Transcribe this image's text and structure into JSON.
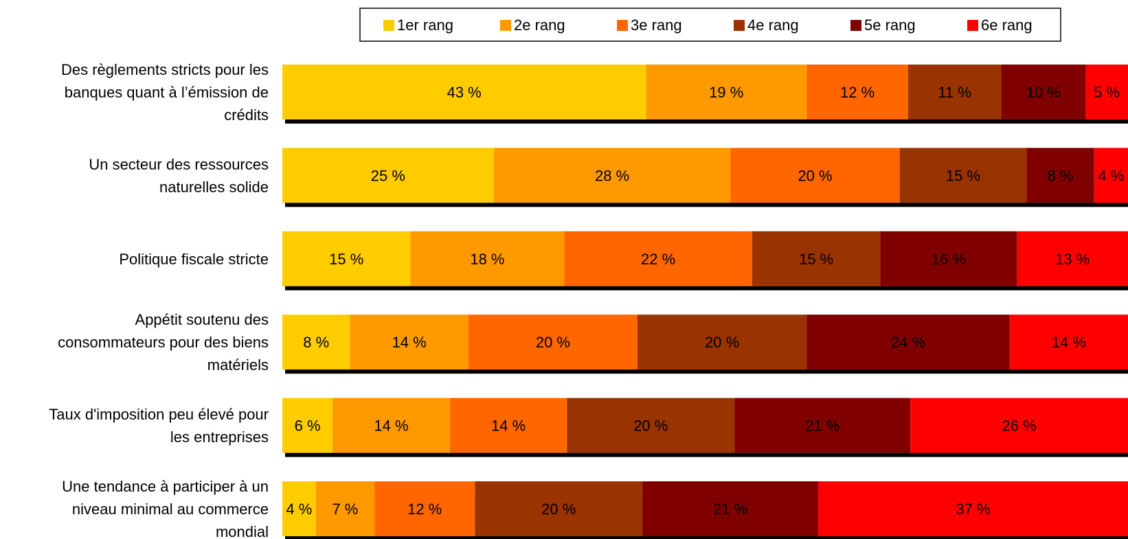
{
  "chart_data": {
    "type": "bar",
    "orientation": "horizontal",
    "stacked": true,
    "categories": [
      "Des règlements stricts pour les banques quant à l’émission de crédits",
      "Un secteur des ressources naturelles solide",
      "Politique fiscale stricte",
      "Appétit soutenu des consommateurs pour des biens matériels",
      "Taux d'imposition peu élevé pour les entreprises",
      "Une tendance à participer à un niveau minimal au commerce mondial"
    ],
    "category_lines": [
      [
        "Des règlements stricts pour les",
        "banques quant à l’émission de",
        "crédits"
      ],
      [
        "Un secteur des ressources",
        "naturelles solide"
      ],
      [
        "Politique fiscale stricte"
      ],
      [
        "Appétit soutenu des",
        "consommateurs pour des biens",
        "matériels"
      ],
      [
        "Taux d'imposition peu élevé pour",
        "les entreprises"
      ],
      [
        "Une tendance à participer à un",
        "niveau minimal au commerce",
        "mondial"
      ]
    ],
    "series": [
      {
        "name": "1er rang",
        "color": "#FFCC00",
        "label_color": "#000000",
        "values": [
          43,
          25,
          15,
          8,
          6,
          4
        ]
      },
      {
        "name": "2e rang",
        "color": "#FF9900",
        "label_color": "#000000",
        "values": [
          19,
          28,
          18,
          14,
          14,
          7
        ]
      },
      {
        "name": "3e rang",
        "color": "#FF6600",
        "label_color": "#000000",
        "values": [
          12,
          20,
          22,
          20,
          14,
          12
        ]
      },
      {
        "name": "4e rang",
        "color": "#993300",
        "label_color": "#000000",
        "values": [
          11,
          15,
          15,
          20,
          20,
          20
        ]
      },
      {
        "name": "5e rang",
        "color": "#800000",
        "label_color": "#000000",
        "values": [
          10,
          8,
          16,
          24,
          21,
          21
        ]
      },
      {
        "name": "6e rang",
        "color": "#FF0000",
        "label_color": "#000000",
        "values": [
          5,
          4,
          13,
          14,
          26,
          37
        ]
      }
    ],
    "value_suffix": " %",
    "legend_position": "top",
    "grid": false
  }
}
